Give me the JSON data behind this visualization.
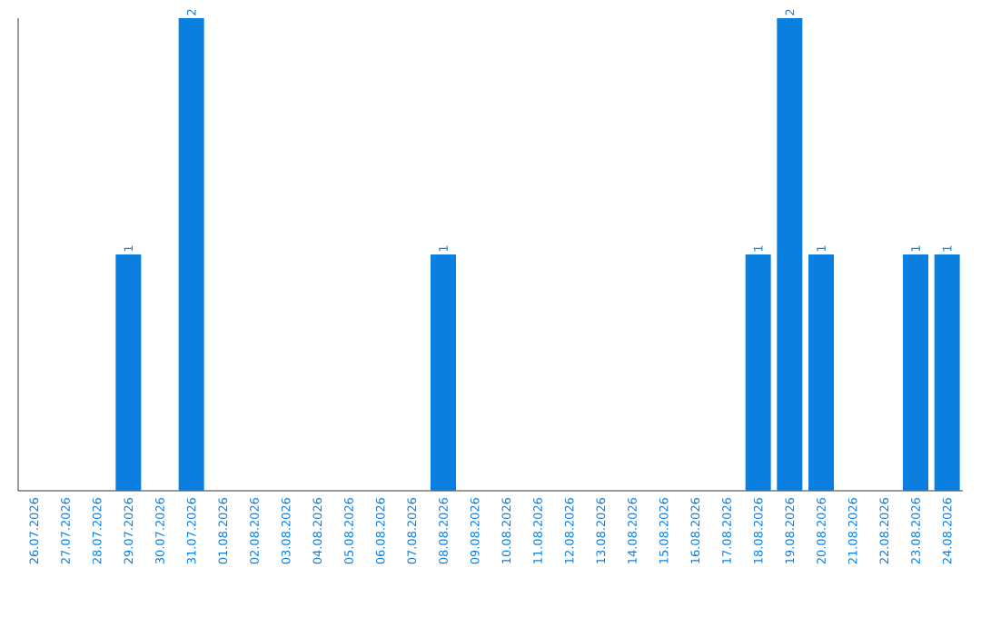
{
  "chart_data": {
    "type": "bar",
    "categories": [
      "26.07.2026",
      "27.07.2026",
      "28.07.2026",
      "29.07.2026",
      "30.07.2026",
      "31.07.2026",
      "01.08.2026",
      "02.08.2026",
      "03.08.2026",
      "04.08.2026",
      "05.08.2026",
      "06.08.2026",
      "07.08.2026",
      "08.08.2026",
      "09.08.2026",
      "10.08.2026",
      "11.08.2026",
      "12.08.2026",
      "13.08.2026",
      "14.08.2026",
      "15.08.2026",
      "16.08.2026",
      "17.08.2026",
      "18.08.2026",
      "19.08.2026",
      "20.08.2026",
      "21.08.2026",
      "22.08.2026",
      "23.08.2026",
      "24.08.2026"
    ],
    "values": [
      0,
      0,
      0,
      1,
      0,
      2,
      0,
      0,
      0,
      0,
      0,
      0,
      0,
      1,
      0,
      0,
      0,
      0,
      0,
      0,
      0,
      0,
      0,
      1,
      2,
      1,
      0,
      0,
      1,
      1
    ],
    "value_labels": [
      null,
      null,
      null,
      "1",
      null,
      "2",
      null,
      null,
      null,
      null,
      null,
      null,
      null,
      "1",
      null,
      null,
      null,
      null,
      null,
      null,
      null,
      null,
      null,
      "1",
      "2",
      "1",
      null,
      null,
      "1",
      "1"
    ],
    "color": "#0a7fe0",
    "ylim": [
      0,
      2
    ],
    "tick_labels": "x"
  }
}
